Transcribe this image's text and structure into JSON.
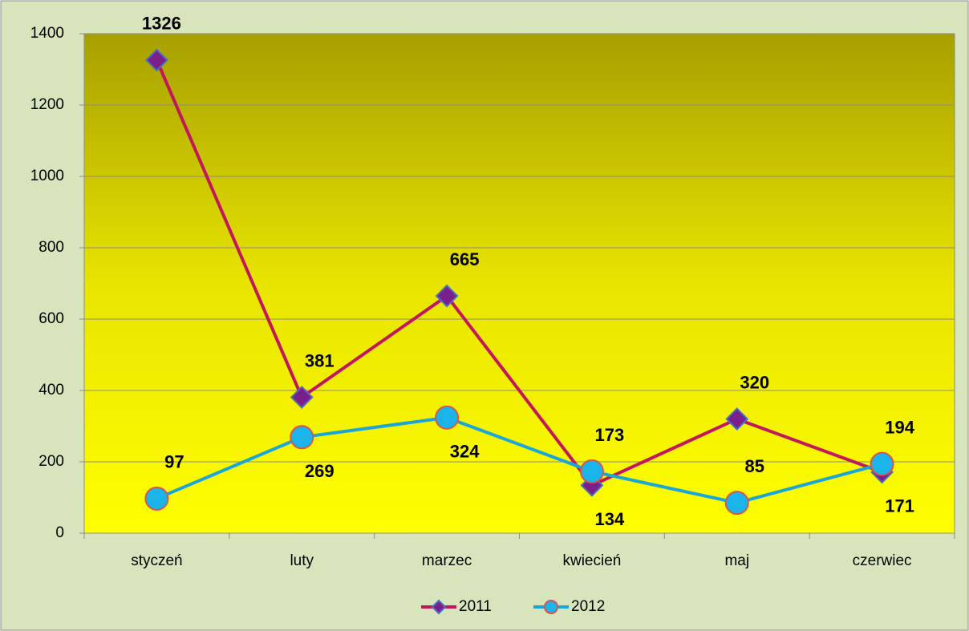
{
  "chart_data": {
    "type": "line",
    "categories": [
      "styczeń",
      "luty",
      "marzec",
      "kwiecień",
      "maj",
      "czerwiec"
    ],
    "series": [
      {
        "name": "2011",
        "color": "#c2185b",
        "marker": "diamond",
        "marker_color": "#7b1f8c",
        "values": [
          1326,
          381,
          665,
          134,
          320,
          171
        ]
      },
      {
        "name": "2012",
        "color": "#1aa7d8",
        "marker": "circle",
        "marker_color": "#1ab4ea",
        "values": [
          97,
          269,
          324,
          173,
          85,
          194
        ]
      }
    ],
    "ylim": [
      0,
      1400
    ],
    "yticks": [
      0,
      200,
      400,
      600,
      800,
      1000,
      1200,
      1400
    ],
    "grid": true,
    "legend": "bottom"
  }
}
